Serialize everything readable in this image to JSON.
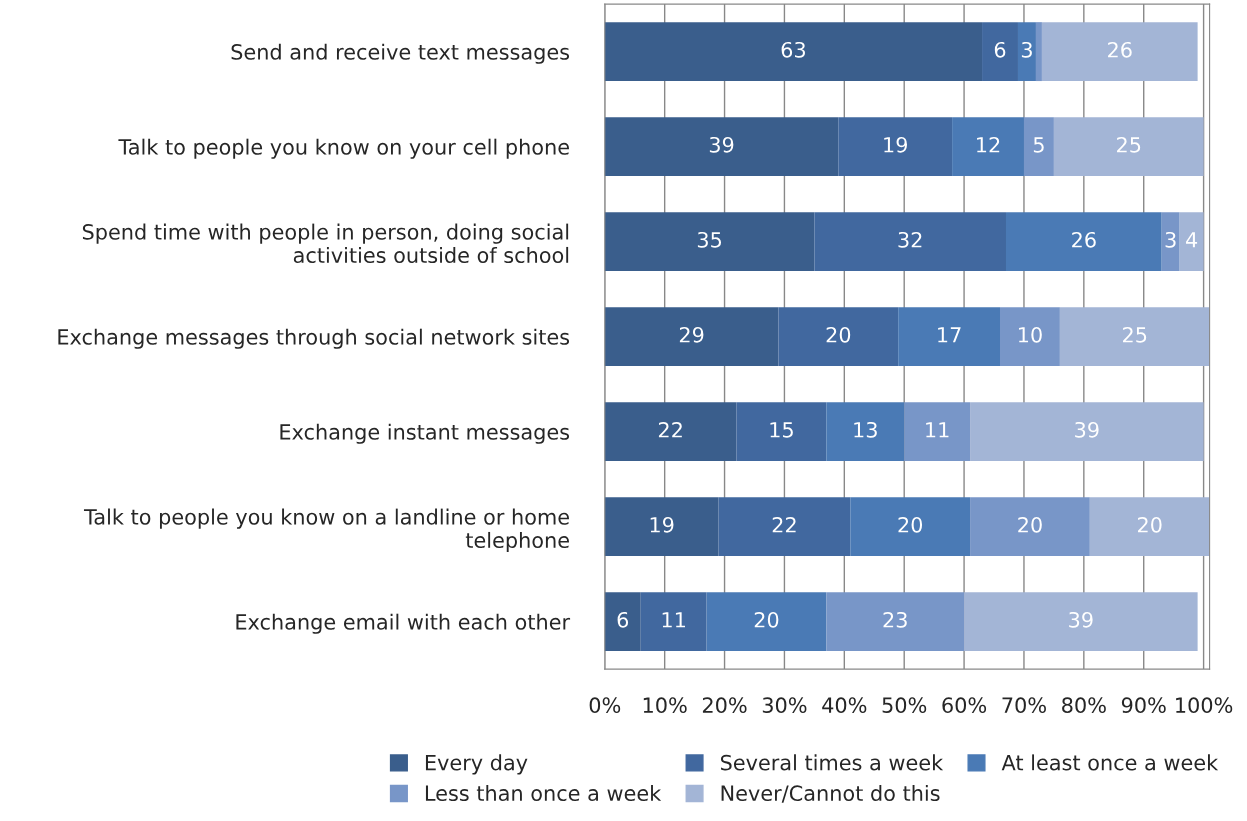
{
  "chart_data": {
    "type": "bar",
    "orientation": "horizontal",
    "stacked": true,
    "categories": [
      "Send and receive text messages",
      "Talk to people you know on your cell phone",
      "Spend time with people in person, doing social activities outside of school",
      "Exchange messages through social network sites",
      "Exchange instant messages",
      "Talk to people you know on a landline or home telephone",
      "Exchange email with each other"
    ],
    "series": [
      {
        "name": "Every day",
        "color": "#3a5e8c",
        "values": [
          63,
          39,
          35,
          29,
          22,
          19,
          6
        ]
      },
      {
        "name": "Several times a week",
        "color": "#41689f",
        "values": [
          6,
          19,
          32,
          20,
          15,
          22,
          11
        ]
      },
      {
        "name": "At least once a week",
        "color": "#4a7ab5",
        "values": [
          3,
          12,
          26,
          17,
          13,
          20,
          20
        ]
      },
      {
        "name": "Less than once a week",
        "color": "#7896c8",
        "values": [
          1,
          5,
          3,
          10,
          11,
          20,
          23
        ],
        "value_labels": [
          null,
          "5",
          "3",
          "10",
          "11",
          "20",
          "23"
        ]
      },
      {
        "name": "Never/Cannot do this",
        "color": "#a3b5d6",
        "values": [
          26,
          25,
          4,
          25,
          39,
          20,
          39
        ]
      }
    ],
    "xlim": [
      0,
      101
    ],
    "xticks": [
      {
        "value": 0,
        "label": "0%"
      },
      {
        "value": 10,
        "label": "10%"
      },
      {
        "value": 20,
        "label": "20%"
      },
      {
        "value": 30,
        "label": "30%"
      },
      {
        "value": 40,
        "label": "40%"
      },
      {
        "value": 50,
        "label": "50%"
      },
      {
        "value": 60,
        "label": "60%"
      },
      {
        "value": 70,
        "label": "70%"
      },
      {
        "value": 80,
        "label": "80%"
      },
      {
        "value": 90,
        "label": "90%"
      },
      {
        "value": 100,
        "label": "100%"
      }
    ],
    "grid": "x",
    "legend": "bottom",
    "data_labels": true
  }
}
